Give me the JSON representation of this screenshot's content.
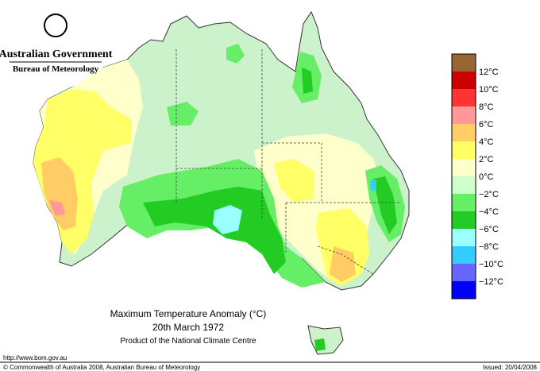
{
  "header": {
    "government": "Australian Government",
    "agency": "Bureau of Meteorology"
  },
  "map": {
    "title": "Maximum Temperature Anomaly (°C)",
    "date": "20th March 1972",
    "product": "Product of the National Climate Centre"
  },
  "legend": {
    "colors": [
      "#996633",
      "#cc0000",
      "#ff3333",
      "#ff9999",
      "#ffcc66",
      "#ffff66",
      "#ffffcc",
      "#ccffcc",
      "#66ee66",
      "#22cc22",
      "#99ffff",
      "#33ccff",
      "#6666ff",
      "#0000ff"
    ],
    "labels": [
      "12°C",
      "10°C",
      "8°C",
      "6°C",
      "4°C",
      "2°C",
      "0°C",
      "−2°C",
      "−4°C",
      "−6°C",
      "−8°C",
      "−10°C",
      "−12°C"
    ]
  },
  "footer": {
    "url": "http://www.bom.gov.au",
    "copyright": "© Commonwealth of Australia 2008, Australian Bureau of Meteorology",
    "issued": "Issued: 20/04/2008"
  }
}
